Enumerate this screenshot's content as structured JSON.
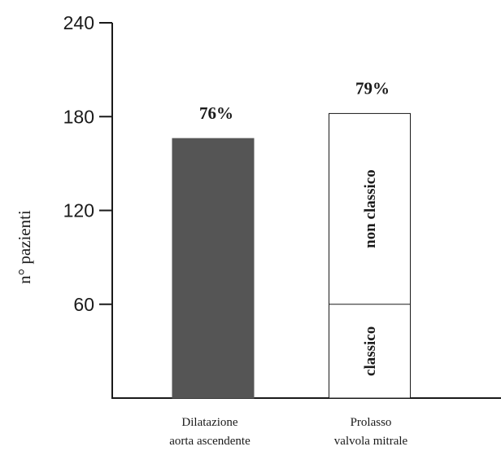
{
  "chart_data": {
    "type": "bar",
    "ylabel": "n° pazienti",
    "xlabel": "",
    "ylim": [
      0,
      240
    ],
    "yticks": [
      60,
      120,
      180,
      240
    ],
    "grid": false,
    "colors": {
      "dark": "#555555",
      "stroke": "#1a1a1a",
      "fill_open": "#ffffff"
    },
    "bars": [
      {
        "category": [
          "Dilatazione",
          "aorta ascendente"
        ],
        "value": 166,
        "percent_label": "76%",
        "style": "solid",
        "segments": []
      },
      {
        "category": [
          "Prolasso",
          "valvola mitrale"
        ],
        "value": 182,
        "percent_label": "79%",
        "style": "open",
        "segments": [
          {
            "label": "classico",
            "from": 0,
            "to": 60
          },
          {
            "label": "non classico",
            "from": 60,
            "to": 182
          }
        ]
      }
    ]
  }
}
